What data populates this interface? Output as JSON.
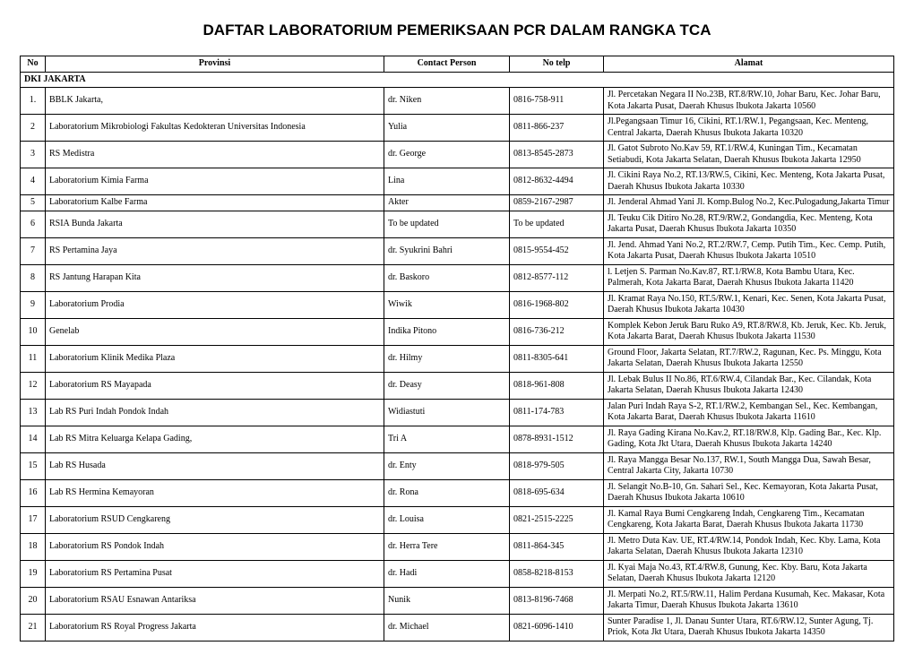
{
  "title": "DAFTAR LABORATORIUM PEMERIKSAAN PCR DALAM RANGKA TCA",
  "title_fontsize": 17,
  "body_fontsize": 10,
  "columns": {
    "no": "No",
    "provinsi": "Provinsi",
    "contact_person": "Contact Person",
    "no_telp": "No telp",
    "alamat": "Alamat"
  },
  "section_label": "DKI JAKARTA",
  "rows": [
    {
      "no": "1.",
      "provinsi": "BBLK Jakarta,",
      "contact_person": "dr. Niken",
      "no_telp": "0816-758-911",
      "alamat": "Jl. Percetakan Negara II No.23B, RT.8/RW.10, Johar Baru, Kec. Johar Baru, Kota Jakarta Pusat, Daerah Khusus Ibukota Jakarta 10560"
    },
    {
      "no": "2",
      "provinsi": "Laboratorium Mikrobiologi Fakultas Kedokteran Universitas Indonesia",
      "contact_person": "Yulia",
      "no_telp": "0811-866-237",
      "alamat": "Jl.Pegangsaan Timur 16, Cikini, RT.1/RW.1, Pegangsaan, Kec. Menteng, Central Jakarta, Daerah Khusus Ibukota Jakarta 10320"
    },
    {
      "no": "3",
      "provinsi": "RS Medistra",
      "contact_person": "dr. George",
      "no_telp": "0813-8545-2873",
      "alamat": "Jl. Gatot Subroto No.Kav 59, RT.1/RW.4, Kuningan Tim., Kecamatan Setiabudi, Kota Jakarta Selatan, Daerah Khusus Ibukota Jakarta 12950"
    },
    {
      "no": "4",
      "provinsi": "Laboratorium Kimia Farma",
      "contact_person": "Lina",
      "no_telp": "0812-8632-4494",
      "alamat": "Jl. Cikini Raya No.2, RT.13/RW.5, Cikini, Kec. Menteng, Kota Jakarta Pusat, Daerah Khusus Ibukota Jakarta 10330"
    },
    {
      "no": "5",
      "provinsi": "Laboratorium Kalbe Farma",
      "contact_person": "Akter",
      "no_telp": "0859-2167-2987",
      "alamat": "Jl. Jenderal Ahmad Yani Jl. Komp.Bulog No.2, Kec.Pulogadung,Jakarta Timur"
    },
    {
      "no": "6",
      "provinsi": "RSIA Bunda Jakarta",
      "contact_person": "To be updated",
      "no_telp": "To be updated",
      "alamat": "Jl. Teuku Cik Ditiro No.28, RT.9/RW.2, Gondangdia, Kec. Menteng, Kota Jakarta Pusat, Daerah Khusus Ibukota Jakarta 10350"
    },
    {
      "no": "7",
      "provinsi": "RS Pertamina Jaya",
      "contact_person": "dr. Syukrini Bahri",
      "no_telp": "0815-9554-452",
      "alamat": "Jl. Jend. Ahmad Yani No.2, RT.2/RW.7, Cemp. Putih Tim., Kec. Cemp. Putih, Kota Jakarta Pusat, Daerah Khusus Ibukota Jakarta 10510"
    },
    {
      "no": "8",
      "provinsi": "RS Jantung Harapan Kita",
      "contact_person": "dr. Baskoro",
      "no_telp": "0812-8577-112",
      "alamat": "l. Letjen S. Parman No.Kav.87, RT.1/RW.8, Kota Bambu Utara, Kec. Palmerah, Kota Jakarta Barat, Daerah Khusus Ibukota Jakarta 11420"
    },
    {
      "no": "9",
      "provinsi": "Laboratorium Prodia",
      "contact_person": "Wiwik",
      "no_telp": "0816-1968-802",
      "alamat": "Jl. Kramat Raya No.150, RT.5/RW.1, Kenari, Kec. Senen, Kota Jakarta Pusat, Daerah Khusus Ibukota Jakarta 10430"
    },
    {
      "no": "10",
      "provinsi": "Genelab",
      "contact_person": "Indika Pitono",
      "no_telp": "0816-736-212",
      "alamat": "Komplek Kebon Jeruk Baru Ruko A9, RT.8/RW.8, Kb. Jeruk, Kec. Kb. Jeruk, Kota Jakarta Barat, Daerah Khusus Ibukota Jakarta 11530"
    },
    {
      "no": "11",
      "provinsi": "Laboratorium Klinik Medika Plaza",
      "contact_person": "dr. Hilmy",
      "no_telp": "0811-8305-641",
      "alamat": "Ground Floor, Jakarta Selatan, RT.7/RW.2, Ragunan, Kec. Ps. Minggu, Kota Jakarta Selatan, Daerah Khusus Ibukota Jakarta 12550"
    },
    {
      "no": "12",
      "provinsi": "Laboratorium RS Mayapada",
      "contact_person": "dr. Deasy",
      "no_telp": "0818-961-808",
      "alamat": "Jl. Lebak Bulus II No.86, RT.6/RW.4, Cilandak Bar., Kec. Cilandak, Kota Jakarta Selatan, Daerah Khusus Ibukota Jakarta 12430"
    },
    {
      "no": "13",
      "provinsi": "Lab RS Puri Indah Pondok Indah",
      "contact_person": "Widiastuti",
      "no_telp": "0811-174-783",
      "alamat": "Jalan Puri Indah Raya S-2, RT.1/RW.2, Kembangan Sel., Kec. Kembangan, Kota Jakarta Barat, Daerah Khusus Ibukota Jakarta 11610"
    },
    {
      "no": "14",
      "provinsi": "Lab RS Mitra Keluarga Kelapa Gading,",
      "contact_person": "Tri A",
      "no_telp": "0878-8931-1512",
      "alamat": "Jl. Raya Gading Kirana No.Kav.2, RT.18/RW.8, Klp. Gading Bar., Kec. Klp. Gading, Kota Jkt Utara, Daerah Khusus Ibukota Jakarta 14240"
    },
    {
      "no": "15",
      "provinsi": "Lab RS Husada",
      "contact_person": "dr. Enty",
      "no_telp": "0818-979-505",
      "alamat": "Jl. Raya Mangga Besar No.137, RW.1, South Mangga Dua, Sawah Besar, Central Jakarta City, Jakarta 10730"
    },
    {
      "no": "16",
      "provinsi": "Lab RS Hermina Kemayoran",
      "contact_person": "dr. Rona",
      "no_telp": "0818-695-634",
      "alamat": "Jl. Selangit No.B-10, Gn. Sahari Sel., Kec. Kemayoran, Kota Jakarta Pusat, Daerah Khusus Ibukota Jakarta 10610"
    },
    {
      "no": "17",
      "provinsi": "Laboratorium RSUD Cengkareng",
      "contact_person": "dr. Louisa",
      "no_telp": "0821-2515-2225",
      "alamat": "Jl. Kamal Raya Bumi Cengkareng Indah, Cengkareng Tim., Kecamatan Cengkareng, Kota Jakarta Barat, Daerah Khusus Ibukota Jakarta 11730"
    },
    {
      "no": "18",
      "provinsi": "Laboratorium RS Pondok Indah",
      "contact_person": "dr. Herra Tere",
      "no_telp": "0811-864-345",
      "alamat": "Jl. Metro Duta Kav. UE, RT.4/RW.14, Pondok Indah, Kec. Kby. Lama, Kota Jakarta Selatan, Daerah Khusus Ibukota Jakarta 12310"
    },
    {
      "no": "19",
      "provinsi": "Laboratorium RS Pertamina Pusat",
      "contact_person": "dr. Hadi",
      "no_telp": "0858-8218-8153",
      "alamat": "Jl. Kyai Maja No.43, RT.4/RW.8, Gunung, Kec. Kby. Baru, Kota Jakarta Selatan, Daerah Khusus Ibukota Jakarta 12120"
    },
    {
      "no": "20",
      "provinsi": "Laboratorium RSAU Esnawan Antariksa",
      "contact_person": "Nunik",
      "no_telp": "0813-8196-7468",
      "alamat": "Jl. Merpati No.2, RT.5/RW.11, Halim Perdana Kusumah, Kec. Makasar, Kota Jakarta Timur, Daerah Khusus Ibukota Jakarta 13610"
    },
    {
      "no": "21",
      "provinsi": "Laboratorium RS Royal Progress Jakarta",
      "contact_person": "dr. Michael",
      "no_telp": "0821-6096-1410",
      "alamat": "Sunter Paradise 1, Jl. Danau Sunter Utara, RT.6/RW.12, Sunter Agung, Tj. Priok, Kota Jkt Utara, Daerah Khusus Ibukota Jakarta 14350"
    }
  ]
}
